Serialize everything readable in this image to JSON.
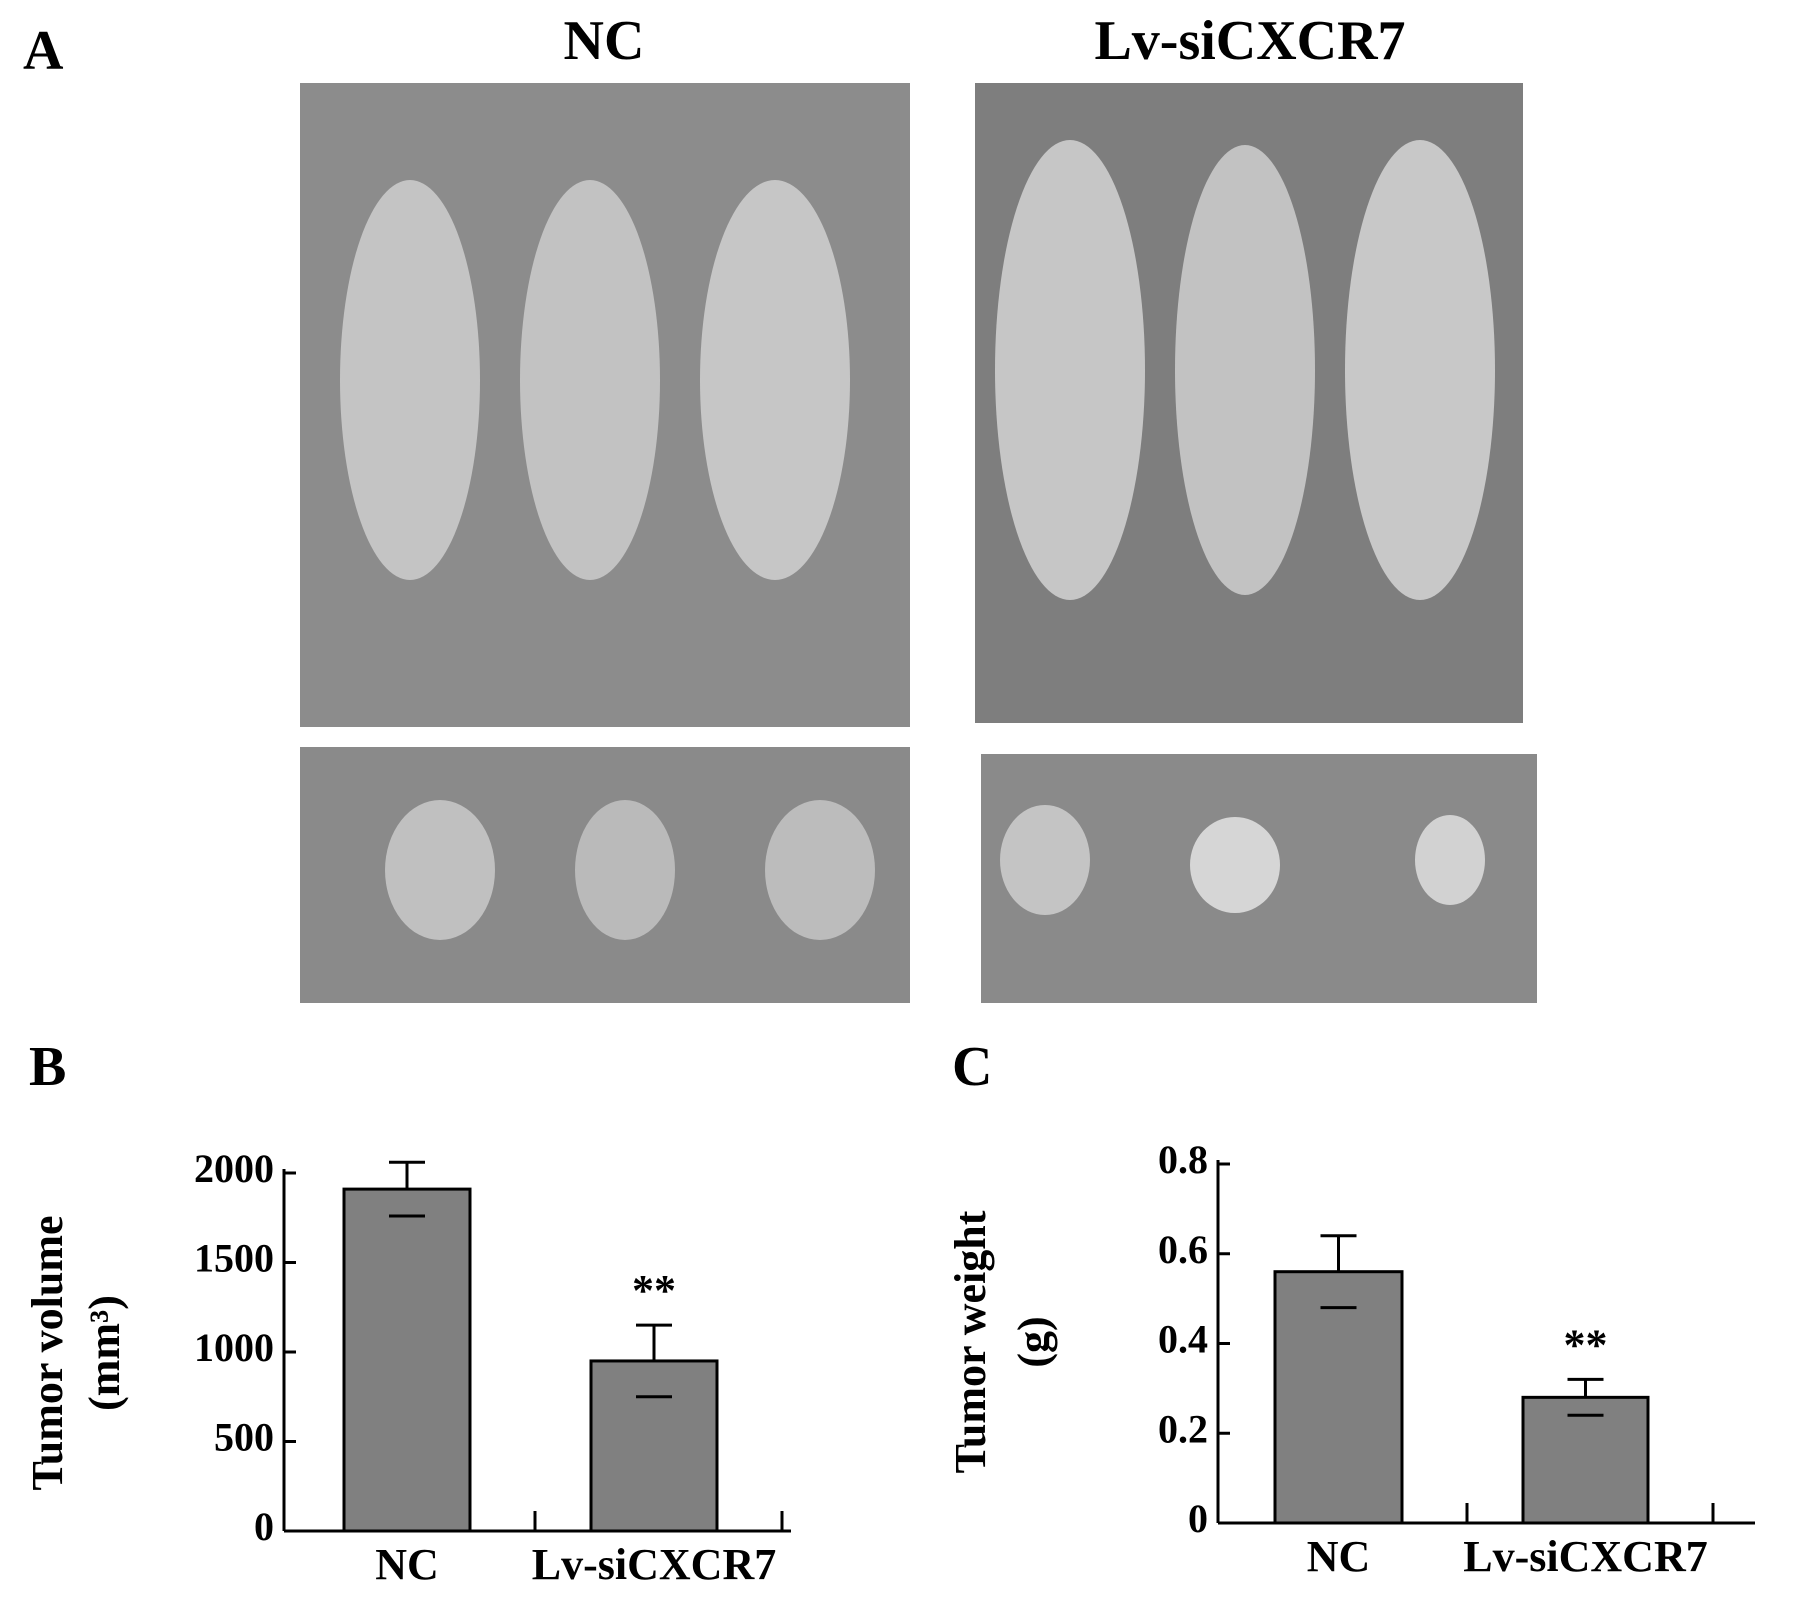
{
  "figure": {
    "panel_labels": [
      "A",
      "B",
      "C"
    ],
    "headings": [
      "NC",
      "Lv-siCXCR7"
    ]
  },
  "chart_data": [
    {
      "type": "bar",
      "ylabel": [
        "Tumor volume",
        "(mm³)"
      ],
      "categories": [
        "NC",
        "Lv-siCXCR7"
      ],
      "values": [
        1910,
        950
      ],
      "errors": [
        150,
        200
      ],
      "value_annotations": [
        null,
        "**"
      ],
      "color": "#808080",
      "ylim": [
        0,
        2000
      ],
      "yticks": [
        0,
        500,
        1000,
        1500,
        2000
      ]
    },
    {
      "type": "bar",
      "ylabel": [
        "Tumor weight",
        "(g)"
      ],
      "categories": [
        "NC",
        "Lv-siCXCR7"
      ],
      "values": [
        0.56,
        0.28
      ],
      "errors": [
        0.08,
        0.04
      ],
      "value_annotations": [
        null,
        "**"
      ],
      "color": "#808080",
      "ylim": [
        0,
        0.8
      ],
      "yticks": [
        0,
        0.2,
        0.4,
        0.6,
        0.8
      ]
    }
  ]
}
